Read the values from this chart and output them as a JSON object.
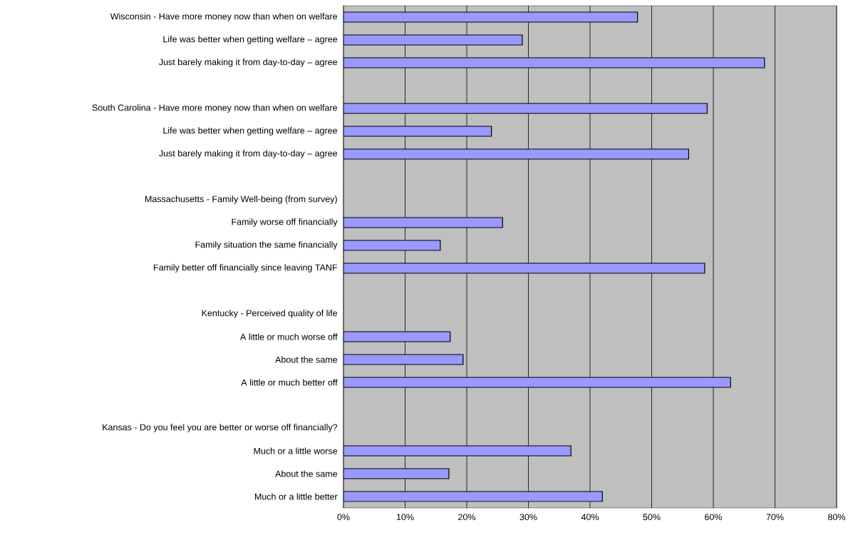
{
  "chart_data": {
    "type": "bar",
    "orientation": "horizontal",
    "color": "#9999ff",
    "grid": "x",
    "categories": [
      "Wisconsin - Have more money now than when on welfare",
      "Life was better when getting welfare – agree",
      "Just barely making it from day-to-day – agree",
      null,
      "South Carolina - Have more money now than when on welfare",
      "Life was better when getting welfare – agree",
      "Just barely making it from day-to-day – agree",
      null,
      "Massachusetts - Family Well-being (from survey)",
      "Family worse off financially",
      "Family situation the same financially",
      "Family better off financially since leaving TANF",
      null,
      "Kentucky - Perceived quality of life",
      "A little or much worse off",
      "About the same",
      "A little or much better off",
      null,
      "Kansas - Do you feel you are better or worse off financially?",
      "Much or a little worse",
      "About the same",
      "Much or a little better"
    ],
    "values": [
      47.7,
      29,
      68.3,
      null,
      59,
      24,
      56,
      null,
      null,
      25.8,
      15.7,
      58.6,
      null,
      null,
      17.3,
      19.4,
      62.8,
      null,
      null,
      36.9,
      17.1,
      42
    ],
    "xlim": [
      0,
      80
    ],
    "xticks": [
      {
        "value": 0,
        "label": "0%"
      },
      {
        "value": 10,
        "label": "10%"
      },
      {
        "value": 20,
        "label": "20%"
      },
      {
        "value": 30,
        "label": "30%"
      },
      {
        "value": 40,
        "label": "40%"
      },
      {
        "value": 50,
        "label": "50%"
      },
      {
        "value": 60,
        "label": "60%"
      },
      {
        "value": 70,
        "label": "70%"
      },
      {
        "value": 80,
        "label": "80%"
      }
    ]
  }
}
